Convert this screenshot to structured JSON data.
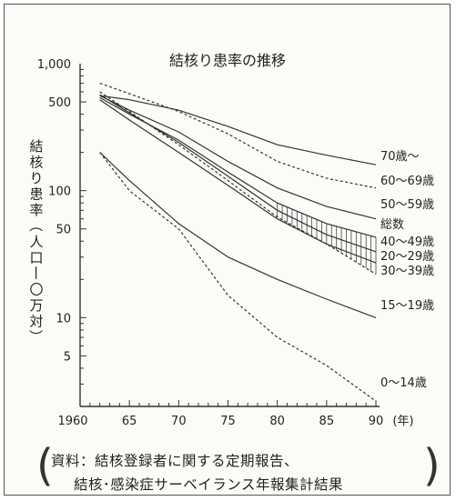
{
  "chart_data": {
    "type": "line",
    "title": "結核り患率の推移",
    "ylabel": "結核り患率（人口一〇万対）",
    "xlabel": "",
    "x_unit_label": "(年)",
    "y_scale": "log",
    "xlim": [
      1960,
      1990
    ],
    "ylim": [
      2,
      1000
    ],
    "x_ticks": [
      "1960",
      "65",
      "70",
      "75",
      "80",
      "85",
      "90"
    ],
    "y_ticks": [
      "1,000",
      "500",
      "100",
      "50",
      "10",
      "5"
    ],
    "grid": false,
    "legend": "labels at right end of each line",
    "x": [
      1962,
      1965,
      1970,
      1975,
      1980,
      1985,
      1990
    ],
    "series": [
      {
        "name": "70歳～",
        "style": "solid",
        "values": [
          560,
          520,
          430,
          320,
          230,
          190,
          160
        ]
      },
      {
        "name": "60～69歳",
        "style": "dashed",
        "values": [
          700,
          580,
          420,
          280,
          170,
          125,
          105
        ]
      },
      {
        "name": "50～59歳",
        "style": "solid",
        "values": [
          560,
          430,
          290,
          170,
          105,
          75,
          60
        ]
      },
      {
        "name": "総数",
        "style": "solid",
        "values": [
          540,
          400,
          250,
          140,
          80,
          55,
          43
        ]
      },
      {
        "name": "40～49歳",
        "style": "solid",
        "values": [
          570,
          410,
          240,
          130,
          70,
          45,
          33
        ]
      },
      {
        "name": "20～29歳",
        "style": "solid",
        "values": [
          520,
          360,
          200,
          110,
          60,
          38,
          27
        ]
      },
      {
        "name": "30～39歳",
        "style": "dashed",
        "values": [
          600,
          420,
          230,
          120,
          62,
          38,
          22
        ]
      },
      {
        "name": "15～19歳",
        "style": "solid",
        "values": [
          200,
          120,
          55,
          30,
          20,
          14,
          10
        ]
      },
      {
        "name": "0～14歳",
        "style": "dashed",
        "values": [
          200,
          100,
          50,
          15,
          7,
          4.2,
          2.2
        ]
      }
    ],
    "shaded_band": {
      "between": [
        "総数",
        "30～39歳"
      ],
      "x_range": [
        1980,
        1990
      ]
    }
  },
  "source": {
    "line1": "資料：結核登録者に関する定期報告、",
    "line2": "結核･感染症サーベイランス年報集計結果"
  },
  "colors": {
    "line": "#333333",
    "background": "#fbfbf8"
  }
}
